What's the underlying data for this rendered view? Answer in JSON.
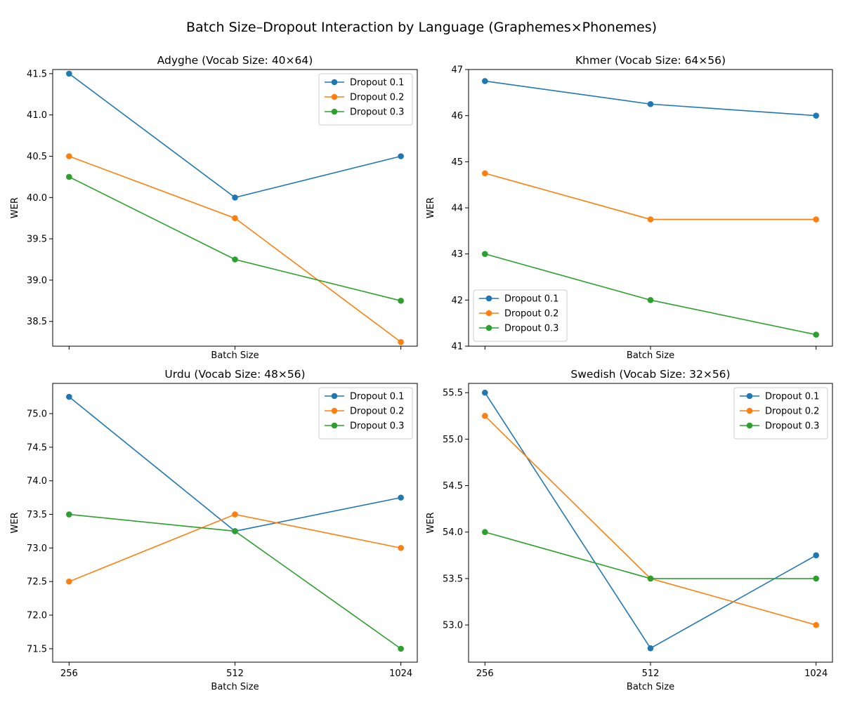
{
  "figure": {
    "title": "Batch Size–Dropout Interaction by Language (Graphemes×Phonemes)"
  },
  "colors": {
    "Dropout 0.1": "#1f77b4",
    "Dropout 0.2": "#ff7f0e",
    "Dropout 0.3": "#2ca02c"
  },
  "chart_data": [
    {
      "type": "line",
      "title": "Adyghe (Vocab Size: 40×64)",
      "xlabel": "Batch Size",
      "ylabel": "WER",
      "x": [
        256,
        512,
        1024
      ],
      "x_tick_labels_shown": false,
      "ylim": [
        38.2,
        41.55
      ],
      "yticks": [
        38.5,
        39.0,
        39.5,
        40.0,
        40.5,
        41.0,
        41.5
      ],
      "legend": "top-right",
      "grid": false,
      "series": [
        {
          "name": "Dropout 0.1",
          "values": [
            41.5,
            40.0,
            40.5
          ]
        },
        {
          "name": "Dropout 0.2",
          "values": [
            40.5,
            39.75,
            38.25
          ]
        },
        {
          "name": "Dropout 0.3",
          "values": [
            40.25,
            39.25,
            38.75
          ]
        }
      ]
    },
    {
      "type": "line",
      "title": "Khmer (Vocab Size: 64×56)",
      "xlabel": "Batch Size",
      "ylabel": "WER",
      "x": [
        256,
        512,
        1024
      ],
      "x_tick_labels_shown": false,
      "ylim": [
        41.0,
        47.0
      ],
      "yticks": [
        41,
        42,
        43,
        44,
        45,
        46,
        47
      ],
      "legend": "bottom-left",
      "grid": false,
      "series": [
        {
          "name": "Dropout 0.1",
          "values": [
            46.75,
            46.25,
            46.0
          ]
        },
        {
          "name": "Dropout 0.2",
          "values": [
            44.75,
            43.75,
            43.75
          ]
        },
        {
          "name": "Dropout 0.3",
          "values": [
            43.0,
            42.0,
            41.25
          ]
        }
      ]
    },
    {
      "type": "line",
      "title": "Urdu (Vocab Size: 48×56)",
      "xlabel": "Batch Size",
      "ylabel": "WER",
      "x": [
        256,
        512,
        1024
      ],
      "x_tick_labels_shown": true,
      "ylim": [
        71.3,
        75.45
      ],
      "yticks": [
        71.5,
        72.0,
        72.5,
        73.0,
        73.5,
        74.0,
        74.5,
        75.0
      ],
      "legend": "top-right",
      "grid": false,
      "series": [
        {
          "name": "Dropout 0.1",
          "values": [
            75.25,
            73.25,
            73.75
          ]
        },
        {
          "name": "Dropout 0.2",
          "values": [
            72.5,
            73.5,
            73.0
          ]
        },
        {
          "name": "Dropout 0.3",
          "values": [
            73.5,
            73.25,
            71.5
          ]
        }
      ]
    },
    {
      "type": "line",
      "title": "Swedish (Vocab Size: 32×56)",
      "xlabel": "Batch Size",
      "ylabel": "WER",
      "x": [
        256,
        512,
        1024
      ],
      "x_tick_labels_shown": true,
      "ylim": [
        52.6,
        55.6
      ],
      "yticks": [
        53.0,
        53.5,
        54.0,
        54.5,
        55.0,
        55.5
      ],
      "legend": "top-right",
      "grid": false,
      "series": [
        {
          "name": "Dropout 0.1",
          "values": [
            55.5,
            52.75,
            53.75
          ]
        },
        {
          "name": "Dropout 0.2",
          "values": [
            55.25,
            53.5,
            53.0
          ]
        },
        {
          "name": "Dropout 0.3",
          "values": [
            54.0,
            53.5,
            53.5
          ]
        }
      ]
    }
  ]
}
